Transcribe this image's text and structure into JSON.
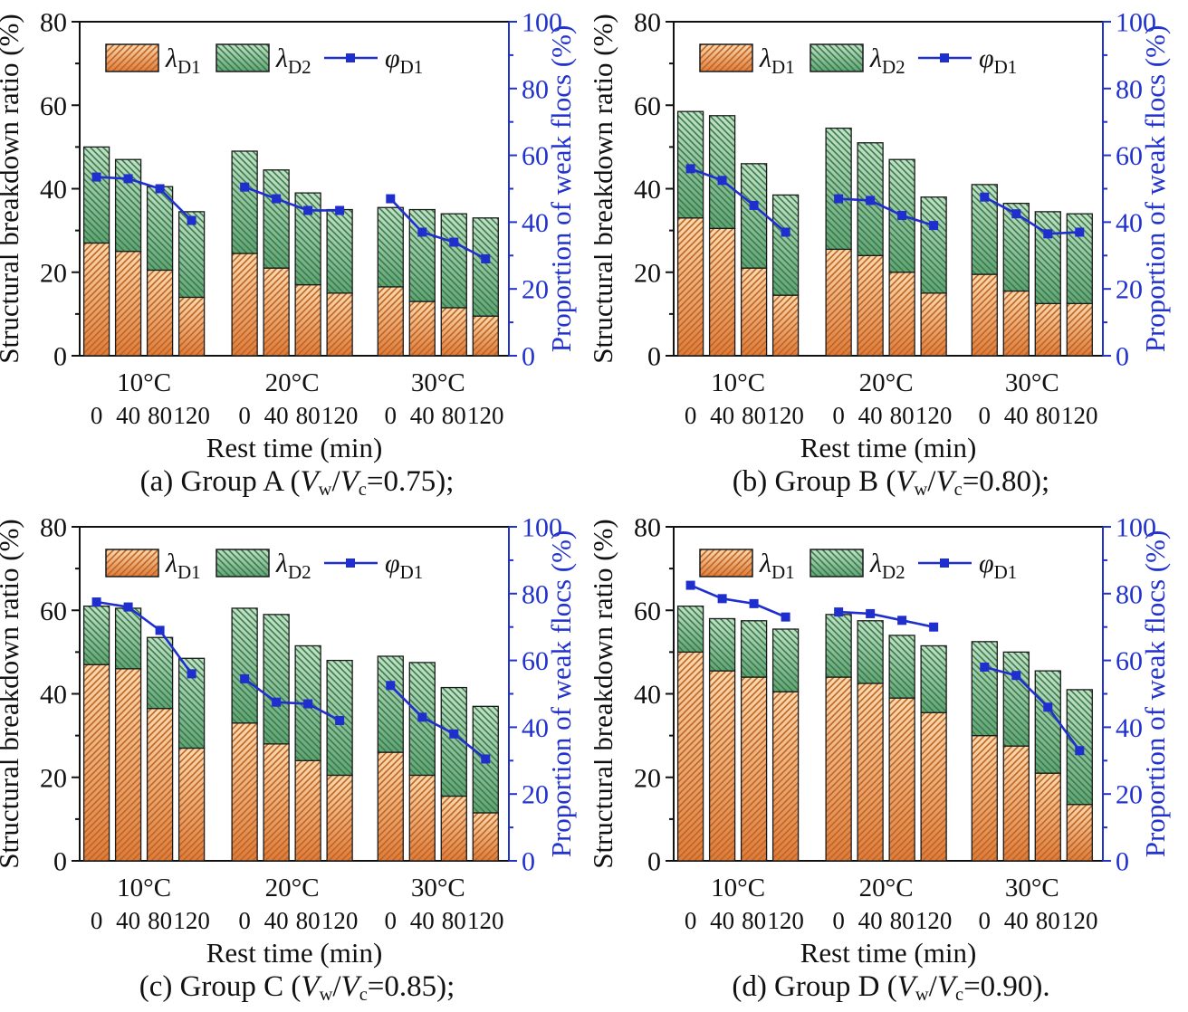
{
  "chart_config": {
    "type": "bar",
    "subtype": "stacked-bars-with-line-overlay",
    "left_axis": {
      "label": "Structural breakdown ratio (%)",
      "min": 0,
      "max": 80,
      "major_ticks": [
        0,
        20,
        40,
        60,
        80
      ],
      "minor_step": 10,
      "color": "#111111"
    },
    "right_axis": {
      "label": "Proportion of weak flocs (%)",
      "min": 0,
      "max": 100,
      "major_ticks": [
        0,
        20,
        40,
        60,
        80,
        100
      ],
      "minor_step": 10,
      "color": "#2132cd"
    },
    "x_label": "Rest time (min)",
    "temperatures": [
      "10°C",
      "20°C",
      "30°C"
    ],
    "rest_times": [
      "0",
      "40",
      "80",
      "120"
    ],
    "grid": "off",
    "legend_position": "top-inside",
    "legend": [
      {
        "base": "λ",
        "sub": "D1",
        "swatch": "orange-hatch"
      },
      {
        "base": "λ",
        "sub": "D2",
        "swatch": "green-hatch"
      },
      {
        "base": "φ",
        "sub": "D1",
        "swatch": "blue-line-marker"
      }
    ],
    "colors": {
      "bar_outline": "#1a1a1a",
      "lambda_d1_fill_top": "#fad9ae",
      "lambda_d1_fill_bottom": "#e07b3a",
      "lambda_d1_hatch": "#bc6626",
      "lambda_d2_fill_top": "#c2e1c5",
      "lambda_d2_fill_bottom": "#60a473",
      "lambda_d2_hatch": "#3a7a4e",
      "phi_line": "#1f2fce",
      "axis_black": "#111111",
      "axis_blue": "#2132cd"
    }
  },
  "chart_data": [
    {
      "id": "a",
      "caption": {
        "prefix": "(a) Group A (",
        "v1": "V",
        "sub1": "w",
        "slash": "/",
        "v2": "V",
        "sub2": "c",
        "suffix": "=0.75);"
      },
      "series": {
        "lambda_d1": [
          [
            27,
            25,
            20.5,
            14
          ],
          [
            24.5,
            21,
            17,
            15
          ],
          [
            16.5,
            13,
            11.5,
            9.5
          ]
        ],
        "lambda_d2": [
          [
            23,
            22,
            20,
            20.5
          ],
          [
            24.5,
            23.5,
            22,
            20
          ],
          [
            19,
            22,
            22.5,
            23.5
          ]
        ],
        "phi_d1": [
          [
            53.5,
            53,
            50,
            40.5
          ],
          [
            50.5,
            47,
            43.5,
            43.5
          ],
          [
            47,
            37,
            34,
            29
          ]
        ]
      }
    },
    {
      "id": "b",
      "caption": {
        "prefix": "(b) Group B (",
        "v1": "V",
        "sub1": "w",
        "slash": "/",
        "v2": "V",
        "sub2": "c",
        "suffix": "=0.80);"
      },
      "series": {
        "lambda_d1": [
          [
            33,
            30.5,
            21,
            14.5
          ],
          [
            25.5,
            24,
            20,
            15
          ],
          [
            19.5,
            15.5,
            12.5,
            12.5
          ]
        ],
        "lambda_d2": [
          [
            25.5,
            27,
            25,
            24
          ],
          [
            29,
            27,
            27,
            23
          ],
          [
            21.5,
            21,
            22,
            21.5
          ]
        ],
        "phi_d1": [
          [
            56,
            52.5,
            45,
            37
          ],
          [
            47,
            46.5,
            42,
            39
          ],
          [
            47.5,
            42.5,
            36.5,
            37
          ]
        ]
      }
    },
    {
      "id": "c",
      "caption": {
        "prefix": "(c) Group C (",
        "v1": "V",
        "sub1": "w",
        "slash": "/",
        "v2": "V",
        "sub2": "c",
        "suffix": "=0.85);"
      },
      "series": {
        "lambda_d1": [
          [
            47,
            46,
            36.5,
            27
          ],
          [
            33,
            28,
            24,
            20.5
          ],
          [
            26,
            20.5,
            15.5,
            11.5
          ]
        ],
        "lambda_d2": [
          [
            14,
            14.5,
            17,
            21.5
          ],
          [
            27.5,
            31,
            27.5,
            27.5
          ],
          [
            23,
            27,
            26,
            25.5
          ]
        ],
        "phi_d1": [
          [
            77.5,
            76,
            69,
            56
          ],
          [
            54.5,
            47.5,
            47,
            42
          ],
          [
            52.5,
            43,
            38,
            30.5
          ]
        ]
      }
    },
    {
      "id": "d",
      "caption": {
        "prefix": "(d) Group D (",
        "v1": "V",
        "sub1": "w",
        "slash": "/",
        "v2": "V",
        "sub2": "c",
        "suffix": "=0.90)."
      },
      "series": {
        "lambda_d1": [
          [
            50,
            45.5,
            44,
            40.5
          ],
          [
            44,
            42.5,
            39,
            35.5
          ],
          [
            30,
            27.5,
            21,
            13.5
          ]
        ],
        "lambda_d2": [
          [
            11,
            12.5,
            13.5,
            15
          ],
          [
            15,
            15,
            15,
            16
          ],
          [
            22.5,
            22.5,
            24.5,
            27.5
          ]
        ],
        "phi_d1": [
          [
            82.5,
            78.5,
            77,
            73
          ],
          [
            74.5,
            74,
            72,
            70
          ],
          [
            58,
            55.5,
            46,
            33
          ]
        ]
      }
    }
  ]
}
